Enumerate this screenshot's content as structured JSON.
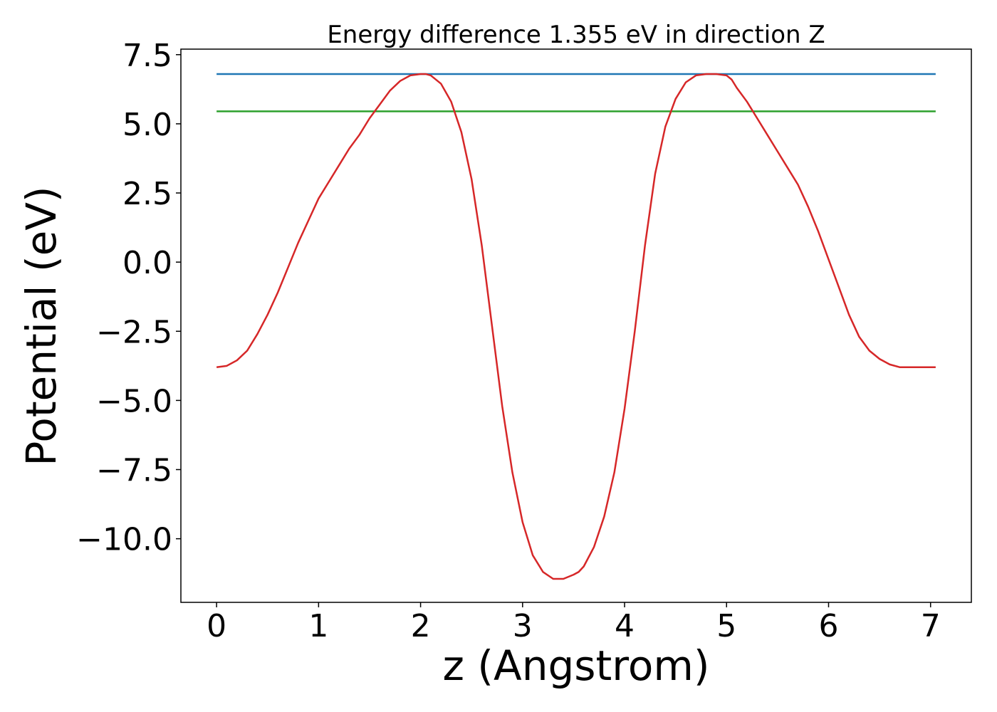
{
  "chart_data": {
    "type": "line",
    "title": "Energy difference 1.355 eV in direction Z",
    "xlabel": "z (Angstrom)",
    "ylabel": "Potential (eV)",
    "xlim": [
      -0.35,
      7.4
    ],
    "ylim": [
      -12.3,
      7.7
    ],
    "xticks": [
      0,
      1,
      2,
      3,
      4,
      5,
      6,
      7
    ],
    "xtick_labels": [
      "0",
      "1",
      "2",
      "3",
      "4",
      "5",
      "6",
      "7"
    ],
    "yticks": [
      -10.0,
      -7.5,
      -5.0,
      -2.5,
      0.0,
      2.5,
      5.0,
      7.5
    ],
    "ytick_labels": [
      "−10.0",
      "−7.5",
      "−5.0",
      "−2.5",
      "0.0",
      "2.5",
      "5.0",
      "7.5"
    ],
    "grid": false,
    "series": [
      {
        "color": "#1f77b4",
        "x": [
          0,
          7.05
        ],
        "y": [
          6.8,
          6.8
        ]
      },
      {
        "color": "#2ca02c",
        "x": [
          0,
          7.05
        ],
        "y": [
          5.45,
          5.45
        ]
      },
      {
        "color": "#d62728",
        "x": [
          0,
          0.1,
          0.2,
          0.3,
          0.4,
          0.5,
          0.6,
          0.7,
          0.8,
          0.9,
          1.0,
          1.1,
          1.2,
          1.3,
          1.4,
          1.5,
          1.6,
          1.7,
          1.8,
          1.9,
          2.0,
          2.05,
          2.1,
          2.2,
          2.3,
          2.4,
          2.5,
          2.6,
          2.7,
          2.8,
          2.9,
          3.0,
          3.1,
          3.2,
          3.3,
          3.4,
          3.5,
          3.55,
          3.6,
          3.7,
          3.8,
          3.9,
          4.0,
          4.1,
          4.2,
          4.3,
          4.4,
          4.5,
          4.6,
          4.7,
          4.8,
          4.9,
          5.0,
          5.05,
          5.1,
          5.2,
          5.3,
          5.4,
          5.5,
          5.6,
          5.7,
          5.8,
          5.9,
          6.0,
          6.1,
          6.2,
          6.3,
          6.4,
          6.5,
          6.6,
          6.7,
          6.8,
          6.9,
          7.0,
          7.05
        ],
        "y": [
          -3.8,
          -3.75,
          -3.55,
          -3.2,
          -2.6,
          -1.9,
          -1.1,
          -0.2,
          0.7,
          1.5,
          2.3,
          2.9,
          3.5,
          4.1,
          4.6,
          5.2,
          5.7,
          6.2,
          6.55,
          6.75,
          6.8,
          6.8,
          6.75,
          6.45,
          5.8,
          4.7,
          3.0,
          0.6,
          -2.3,
          -5.2,
          -7.6,
          -9.4,
          -10.6,
          -11.2,
          -11.45,
          -11.45,
          -11.3,
          -11.2,
          -11.0,
          -10.3,
          -9.2,
          -7.6,
          -5.3,
          -2.5,
          0.6,
          3.2,
          4.9,
          5.9,
          6.5,
          6.75,
          6.8,
          6.8,
          6.75,
          6.6,
          6.3,
          5.8,
          5.2,
          4.6,
          4.0,
          3.4,
          2.8,
          2.0,
          1.1,
          0.1,
          -0.9,
          -1.9,
          -2.7,
          -3.2,
          -3.5,
          -3.7,
          -3.8,
          -3.8,
          -3.8,
          -3.8,
          -3.8
        ]
      }
    ]
  }
}
